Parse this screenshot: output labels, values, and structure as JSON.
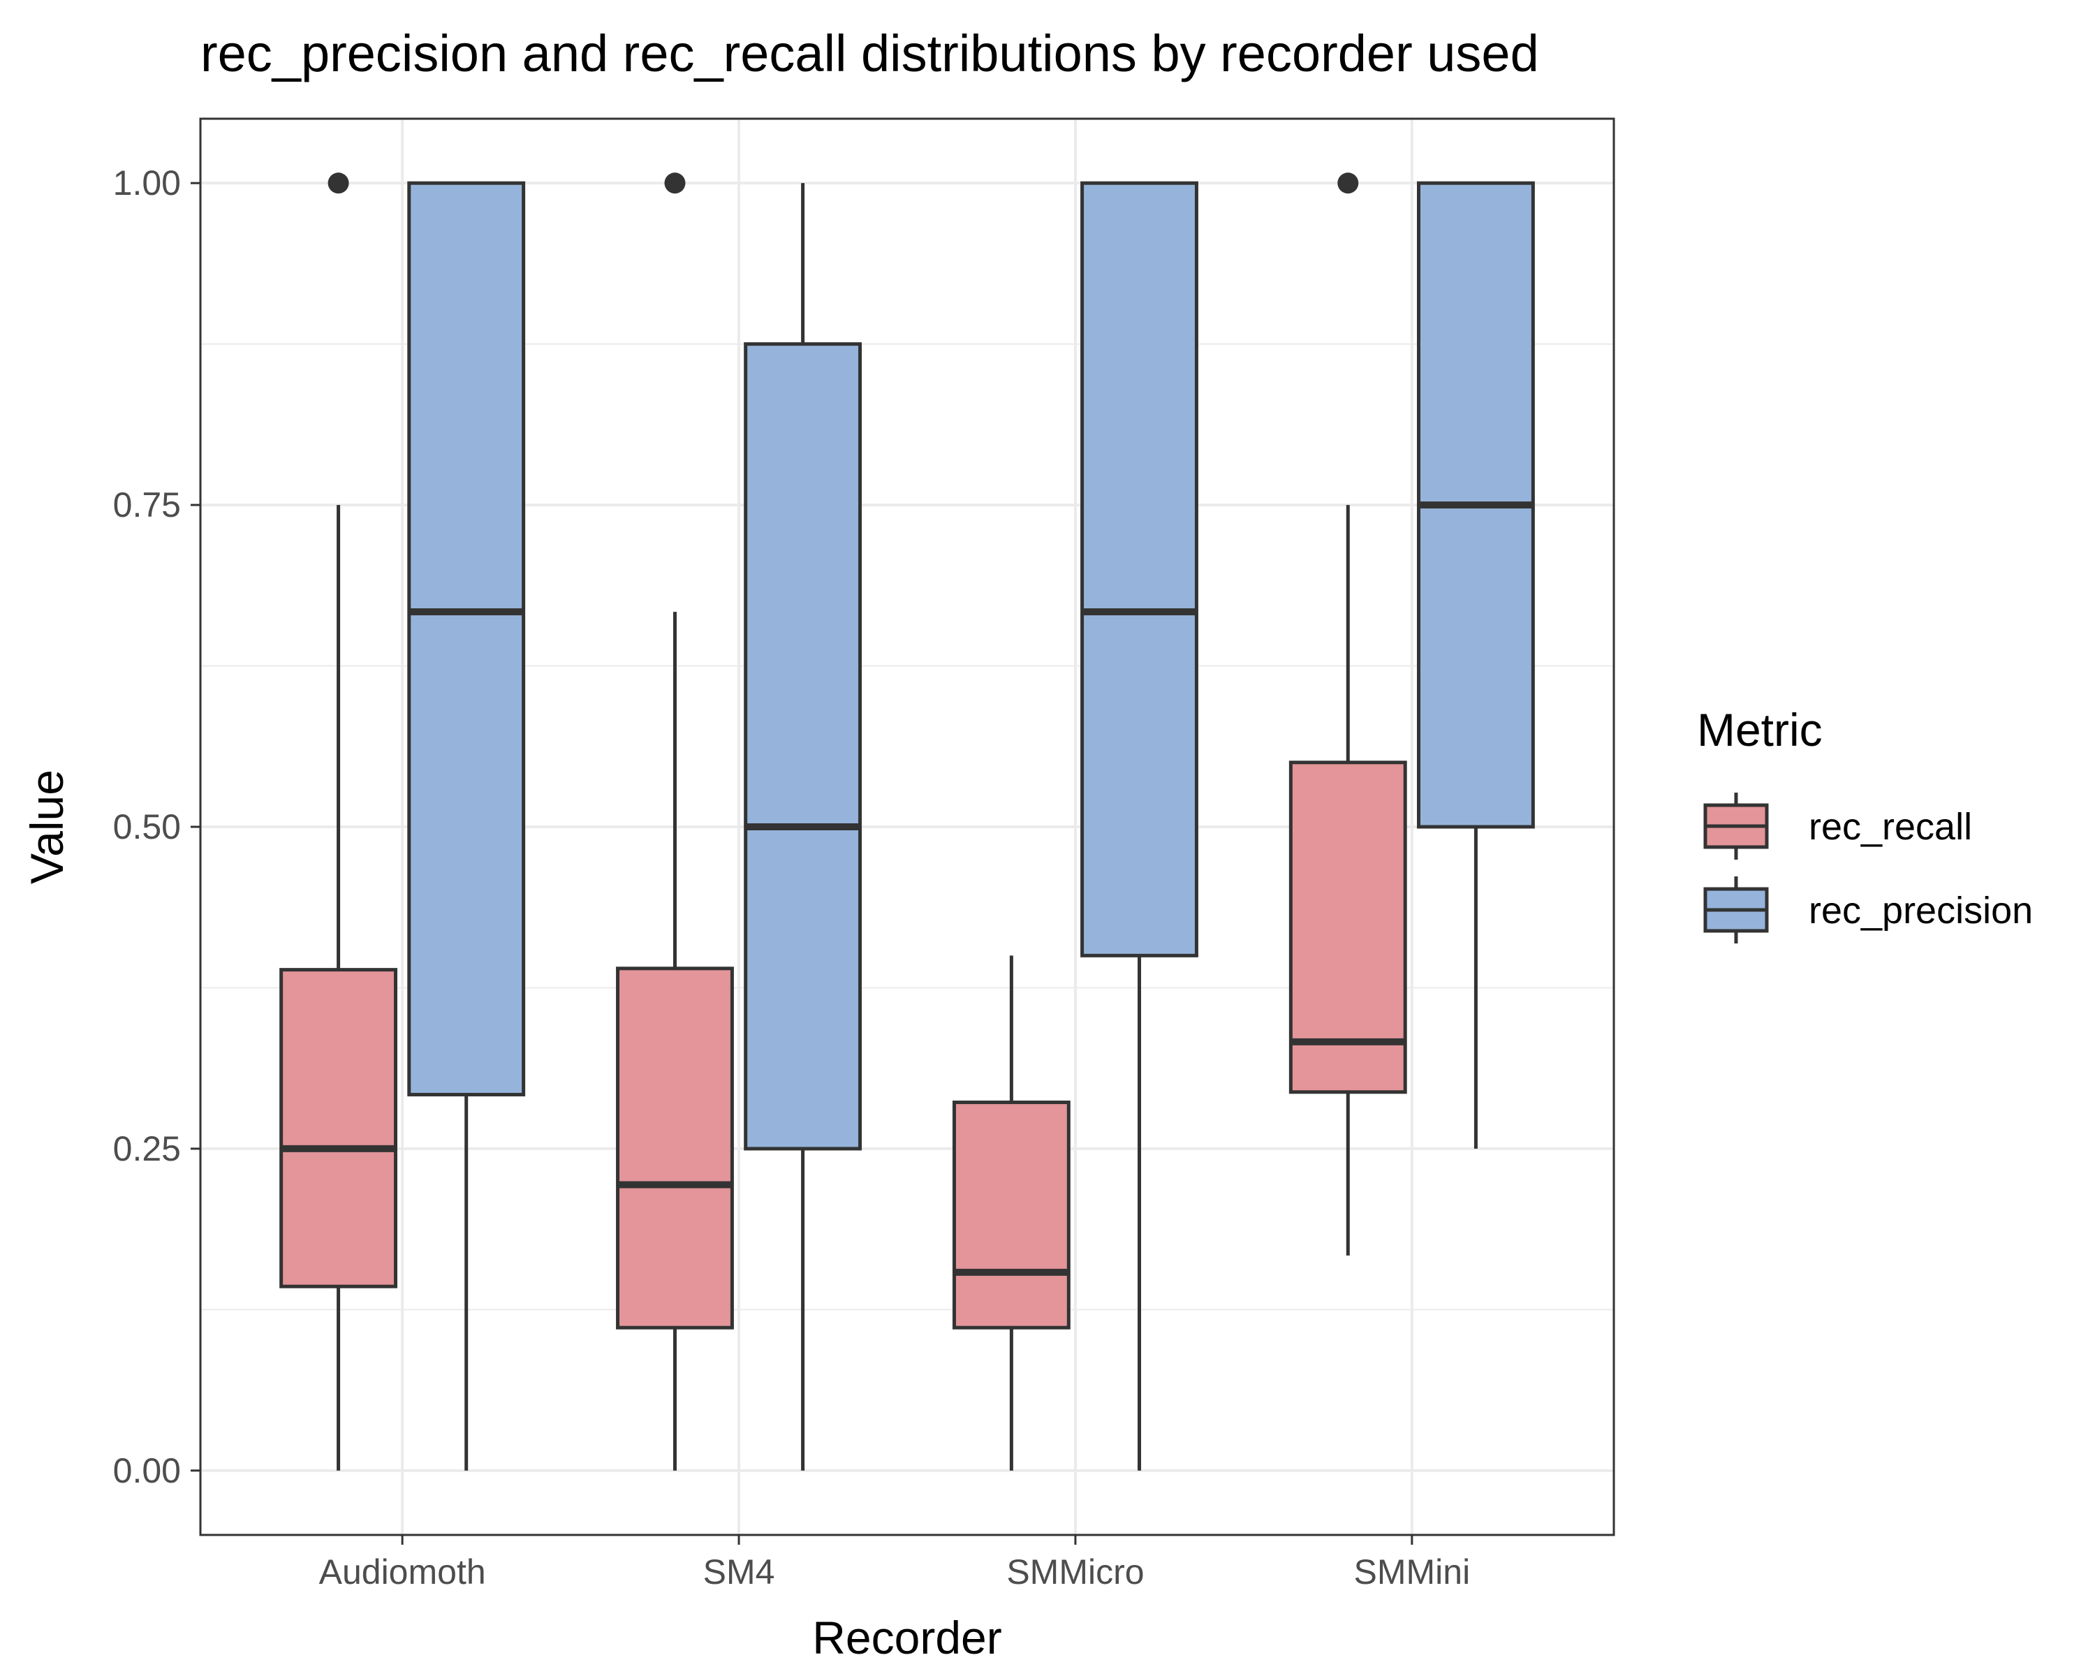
{
  "chart_data": {
    "type": "boxplot",
    "title": "rec_precision and rec_recall distributions by recorder used",
    "xlabel": "Recorder",
    "ylabel": "Value",
    "ylim": [
      -0.05,
      1.05
    ],
    "yticks": [
      "0.00",
      "0.25",
      "0.50",
      "0.75",
      "1.00"
    ],
    "ytick_values": [
      0,
      0.25,
      0.5,
      0.75,
      1.0
    ],
    "categories": [
      "Audiomoth",
      "SM4",
      "SMMicro",
      "SMMini"
    ],
    "grid": true,
    "legend": {
      "title": "Metric",
      "position": "right"
    },
    "series": [
      {
        "name": "rec_recall",
        "color": "#e3959a",
        "boxes": [
          {
            "min": 0.0,
            "q1": 0.143,
            "median": 0.25,
            "q3": 0.389,
            "max": 0.75,
            "outliers": [
              1.0
            ]
          },
          {
            "min": 0.0,
            "q1": 0.111,
            "median": 0.222,
            "q3": 0.39,
            "max": 0.667,
            "outliers": [
              1.0
            ]
          },
          {
            "min": 0.0,
            "q1": 0.111,
            "median": 0.154,
            "q3": 0.286,
            "max": 0.4,
            "outliers": []
          },
          {
            "min": 0.167,
            "q1": 0.294,
            "median": 0.333,
            "q3": 0.55,
            "max": 0.75,
            "outliers": [
              1.0
            ]
          }
        ]
      },
      {
        "name": "rec_precision",
        "color": "#96b4db",
        "boxes": [
          {
            "min": 0.0,
            "q1": 0.292,
            "median": 0.667,
            "q3": 1.0,
            "max": 1.0,
            "outliers": []
          },
          {
            "min": 0.0,
            "q1": 0.25,
            "median": 0.5,
            "q3": 0.875,
            "max": 1.0,
            "outliers": []
          },
          {
            "min": 0.0,
            "q1": 0.4,
            "median": 0.667,
            "q3": 1.0,
            "max": 1.0,
            "outliers": []
          },
          {
            "min": 0.25,
            "q1": 0.5,
            "median": 0.75,
            "q3": 1.0,
            "max": 1.0,
            "outliers": []
          }
        ]
      }
    ],
    "colors": {
      "outline": "#333333",
      "grid": "#ebebeb",
      "panel_border": "#333333"
    }
  }
}
